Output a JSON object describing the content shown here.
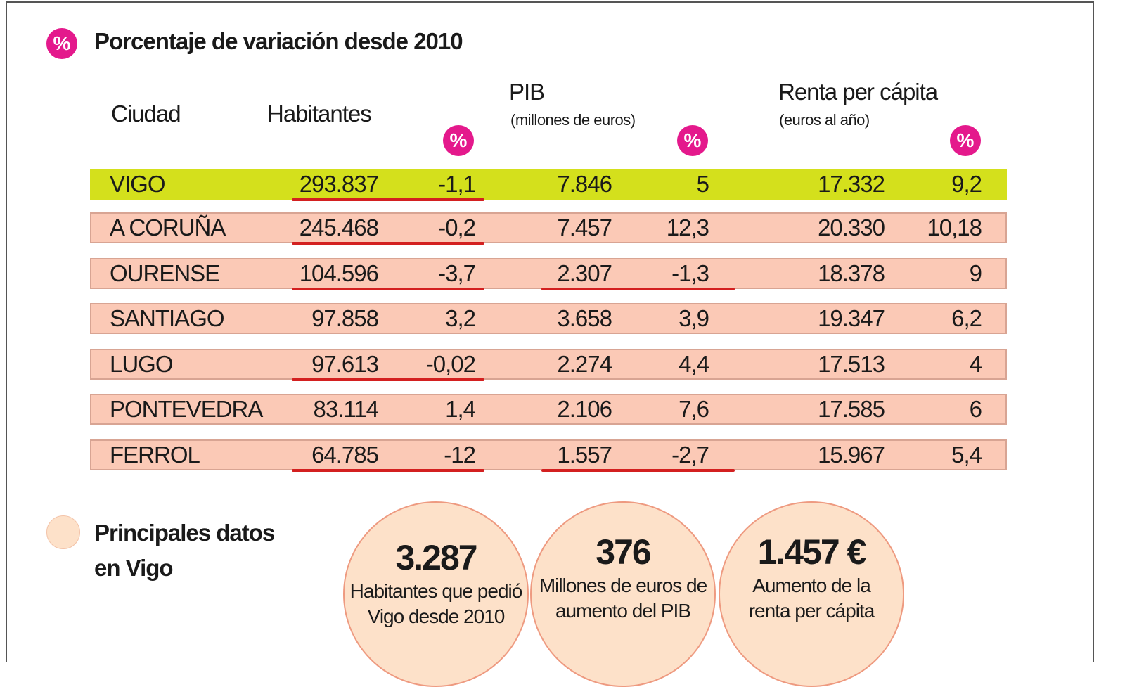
{
  "title": "Porcentaje de variación desde 2010",
  "pct_symbol": "%",
  "colors": {
    "magenta": "#e4198c",
    "highlight": "#d4e01c",
    "row": "#fbc9b6",
    "underline": "#d32020",
    "circle": "#fde1c9"
  },
  "chart_data": {
    "type": "table",
    "title": "Porcentaje de variación desde 2010",
    "headers": {
      "city": "Ciudad",
      "habitantes": "Habitantes",
      "pib": "PIB",
      "pib_unit": "(millones de euros)",
      "renta": "Renta per cápita",
      "renta_unit": "(euros al año)",
      "pct": "%"
    },
    "rows": [
      {
        "city": "VIGO",
        "hab": "293.837",
        "hab_pct": "-1,1",
        "pib": "7.846",
        "pib_pct": "5",
        "renta": "17.332",
        "renta_pct": "9,2",
        "highlight": true,
        "hab_underline": true,
        "pib_underline": false
      },
      {
        "city": "A CORUÑA",
        "hab": "245.468",
        "hab_pct": "-0,2",
        "pib": "7.457",
        "pib_pct": "12,3",
        "renta": "20.330",
        "renta_pct": "10,18",
        "highlight": false,
        "hab_underline": true,
        "pib_underline": false
      },
      {
        "city": "OURENSE",
        "hab": "104.596",
        "hab_pct": "-3,7",
        "pib": "2.307",
        "pib_pct": "-1,3",
        "renta": "18.378",
        "renta_pct": "9",
        "highlight": false,
        "hab_underline": true,
        "pib_underline": true
      },
      {
        "city": "SANTIAGO",
        "hab": "97.858",
        "hab_pct": "3,2",
        "pib": "3.658",
        "pib_pct": "3,9",
        "renta": "19.347",
        "renta_pct": "6,2",
        "highlight": false,
        "hab_underline": false,
        "pib_underline": false
      },
      {
        "city": "LUGO",
        "hab": "97.613",
        "hab_pct": "-0,02",
        "pib": "2.274",
        "pib_pct": "4,4",
        "renta": "17.513",
        "renta_pct": "4",
        "highlight": false,
        "hab_underline": true,
        "pib_underline": false
      },
      {
        "city": "PONTEVEDRA",
        "hab": "83.114",
        "hab_pct": "1,4",
        "pib": "2.106",
        "pib_pct": "7,6",
        "renta": "17.585",
        "renta_pct": "6",
        "highlight": false,
        "hab_underline": false,
        "pib_underline": false
      },
      {
        "city": "FERROL",
        "hab": "64.785",
        "hab_pct": "-12",
        "pib": "1.557",
        "pib_pct": "-2,7",
        "renta": "15.967",
        "renta_pct": "5,4",
        "highlight": false,
        "hab_underline": true,
        "pib_underline": true
      }
    ]
  },
  "vigo": {
    "title_line1": "Principales datos",
    "title_line2": "en Vigo",
    "stats": [
      {
        "value": "3.287",
        "line1": "Habitantes que pedió",
        "line2": "Vigo desde 2010"
      },
      {
        "value": "376",
        "line1": "Millones de euros de",
        "line2": "aumento del PIB"
      },
      {
        "value": "1.457 €",
        "line1": "Aumento de la",
        "line2": "renta per cápita"
      }
    ]
  }
}
